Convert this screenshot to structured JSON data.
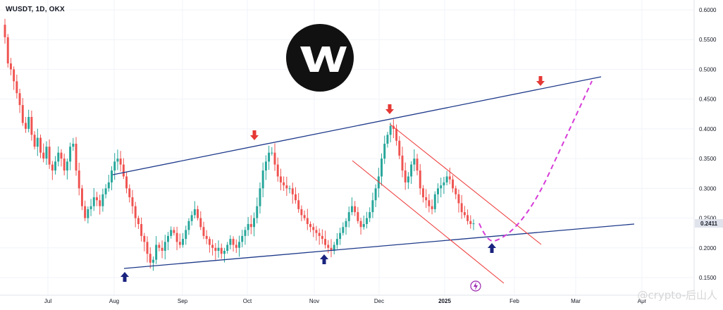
{
  "chart_data": {
    "type": "candlestick",
    "title": "WUSDT, 1D, OKX",
    "y_ticks": [
      "0.6000",
      "0.5500",
      "0.5000",
      "0.4500",
      "0.4000",
      "0.3500",
      "0.3000",
      "0.2500",
      "0.2000",
      "0.1500"
    ],
    "x_ticks": [
      "Jul",
      "Aug",
      "Sep",
      "Oct",
      "Nov",
      "Dec",
      "2025",
      "Feb",
      "Mar",
      "Apr"
    ],
    "last_price": "0.2411",
    "ylim": [
      0.13,
      0.61
    ],
    "grid": true,
    "colors": {
      "up": "#26a69a",
      "down": "#ef5350",
      "trend": "#1e3a8a",
      "channel": "#ef4444",
      "projection": "#d63cd8",
      "up_arrow": "#1a237e",
      "down_arrow": "#e53935",
      "price_tag": "#e0e3eb"
    },
    "closes": [
      0.554,
      0.51,
      0.5,
      0.48,
      0.46,
      0.44,
      0.41,
      0.4,
      0.42,
      0.39,
      0.37,
      0.385,
      0.36,
      0.35,
      0.37,
      0.34,
      0.33,
      0.345,
      0.36,
      0.35,
      0.33,
      0.345,
      0.37,
      0.375,
      0.33,
      0.3,
      0.27,
      0.25,
      0.265,
      0.27,
      0.285,
      0.28,
      0.27,
      0.29,
      0.3,
      0.31,
      0.33,
      0.345,
      0.35,
      0.34,
      0.32,
      0.3,
      0.285,
      0.27,
      0.25,
      0.24,
      0.22,
      0.21,
      0.19,
      0.175,
      0.18,
      0.205,
      0.2,
      0.195,
      0.21,
      0.22,
      0.23,
      0.225,
      0.21,
      0.205,
      0.215,
      0.23,
      0.245,
      0.255,
      0.265,
      0.25,
      0.235,
      0.22,
      0.215,
      0.205,
      0.2,
      0.195,
      0.2,
      0.19,
      0.195,
      0.205,
      0.215,
      0.205,
      0.2,
      0.21,
      0.22,
      0.23,
      0.24,
      0.235,
      0.25,
      0.27,
      0.3,
      0.33,
      0.345,
      0.36,
      0.36,
      0.34,
      0.32,
      0.31,
      0.305,
      0.3,
      0.3,
      0.29,
      0.28,
      0.265,
      0.255,
      0.25,
      0.24,
      0.235,
      0.23,
      0.225,
      0.22,
      0.215,
      0.205,
      0.2,
      0.195,
      0.205,
      0.215,
      0.225,
      0.235,
      0.245,
      0.26,
      0.27,
      0.26,
      0.245,
      0.235,
      0.24,
      0.25,
      0.26,
      0.28,
      0.3,
      0.32,
      0.35,
      0.375,
      0.39,
      0.405,
      0.4,
      0.38,
      0.355,
      0.33,
      0.31,
      0.32,
      0.34,
      0.35,
      0.33,
      0.3,
      0.285,
      0.28,
      0.27,
      0.265,
      0.29,
      0.3,
      0.305,
      0.31,
      0.32,
      0.315,
      0.3,
      0.29,
      0.275,
      0.26,
      0.255,
      0.245,
      0.24,
      0.2411
    ],
    "projection": [
      [
        0.2411,
        0.215
      ],
      [
        0.215,
        0.205
      ],
      [
        0.235,
        0.305
      ],
      [
        0.36,
        0.42
      ],
      [
        0.48,
        0.5
      ]
    ],
    "annotations": [
      "upper-trendline",
      "lower-trendline",
      "descending-channel",
      "magenta-projection",
      "blue-up-arrows",
      "red-down-arrows"
    ]
  },
  "logo": {
    "glyph": "W"
  },
  "watermark": "@crypto-后山人"
}
